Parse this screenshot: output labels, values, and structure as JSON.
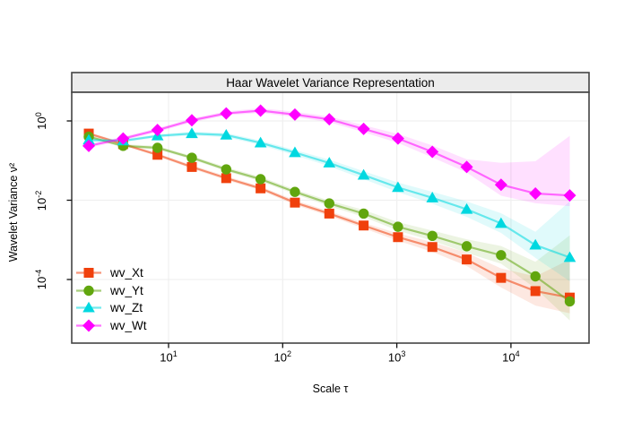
{
  "style": {
    "background": "#ffffff",
    "strip_bg": "#ECECEC",
    "border_color": "#444444",
    "grid_color": "#F0F0F0",
    "tick_color": "#111111",
    "text_color": "#000000",
    "line_opacity": 0.55,
    "band_opacity": 0.12
  },
  "chart_data": {
    "type": "line",
    "title": "Haar Wavelet Variance Representation",
    "xlabel": "Scale τ",
    "ylabel": "Wavelet Variance ν²",
    "x_scale": "log10",
    "y_scale": "log10",
    "grid": true,
    "legend_position": "bottom-left",
    "xlim": [
      1.4,
      48000
    ],
    "ylim": [
      2.5e-06,
      5.3
    ],
    "x_tick_exponents": [
      1,
      2,
      3,
      4
    ],
    "y_tick_exponents": [
      0,
      -2,
      -4
    ],
    "x": [
      2,
      4,
      8,
      16,
      32,
      64,
      128,
      256,
      512,
      1024,
      2048,
      4096,
      8192,
      16384,
      32768
    ],
    "series": [
      {
        "name": "wv_Xt",
        "color": "#F0400C",
        "marker": "square",
        "values": [
          0.48,
          0.26,
          0.14,
          0.069,
          0.036,
          0.0199,
          0.0087,
          0.0046,
          0.0023,
          0.00117,
          0.00066,
          0.00032,
          0.00011,
          5.1e-05,
          3.5e-05
        ],
        "ci_lower": [
          0.44,
          0.24,
          0.128,
          0.062,
          0.032,
          0.0178,
          0.0076,
          0.004,
          0.00195,
          0.00095,
          0.0005,
          0.00022,
          6.3e-05,
          2.2e-05,
          1.4e-05
        ],
        "ci_upper": [
          0.52,
          0.285,
          0.153,
          0.077,
          0.0405,
          0.0223,
          0.01,
          0.0053,
          0.0027,
          0.00145,
          0.00088,
          0.00047,
          0.00019,
          0.00012,
          0.00032
        ]
      },
      {
        "name": "wv_Yt",
        "color": "#61A60E",
        "marker": "circle",
        "values": [
          0.4,
          0.235,
          0.21,
          0.118,
          0.06,
          0.034,
          0.0162,
          0.0083,
          0.0046,
          0.00214,
          0.00126,
          0.00069,
          0.00041,
          0.00012,
          2.8e-05
        ],
        "ci_lower": [
          0.37,
          0.215,
          0.19,
          0.107,
          0.054,
          0.03,
          0.0142,
          0.0071,
          0.0038,
          0.0017,
          0.00095,
          0.00047,
          0.00025,
          6e-05,
          9.3e-06
        ],
        "ci_upper": [
          0.44,
          0.26,
          0.235,
          0.131,
          0.068,
          0.039,
          0.0187,
          0.0098,
          0.0057,
          0.0028,
          0.00172,
          0.00103,
          0.0007,
          0.00028,
          0.0013
        ]
      },
      {
        "name": "wv_Zt",
        "color": "#00D8E0",
        "marker": "triangle",
        "values": [
          0.33,
          0.315,
          0.42,
          0.48,
          0.44,
          0.28,
          0.159,
          0.087,
          0.043,
          0.021,
          0.0115,
          0.0059,
          0.0026,
          0.00074,
          0.00036
        ],
        "ci_lower": [
          0.3,
          0.29,
          0.38,
          0.43,
          0.39,
          0.245,
          0.136,
          0.072,
          0.034,
          0.016,
          0.0082,
          0.0038,
          0.0015,
          0.00035,
          9e-05
        ],
        "ci_upper": [
          0.36,
          0.345,
          0.46,
          0.54,
          0.5,
          0.32,
          0.186,
          0.106,
          0.054,
          0.028,
          0.0163,
          0.0093,
          0.0047,
          0.0016,
          0.0094
        ]
      },
      {
        "name": "wv_Wt",
        "color": "#FF00FF",
        "marker": "diamond",
        "values": [
          0.235,
          0.36,
          0.59,
          1.04,
          1.55,
          1.82,
          1.45,
          1.1,
          0.63,
          0.36,
          0.166,
          0.069,
          0.0246,
          0.0148,
          0.0132
        ],
        "ci_lower": [
          0.21,
          0.32,
          0.53,
          0.92,
          1.38,
          1.6,
          1.25,
          0.93,
          0.52,
          0.28,
          0.12,
          0.05,
          0.013,
          0.0084,
          0.0071
        ],
        "ci_upper": [
          0.26,
          0.4,
          0.66,
          1.16,
          1.75,
          2.1,
          1.7,
          1.3,
          0.78,
          0.47,
          0.24,
          0.108,
          0.088,
          0.096,
          0.42
        ]
      }
    ]
  }
}
